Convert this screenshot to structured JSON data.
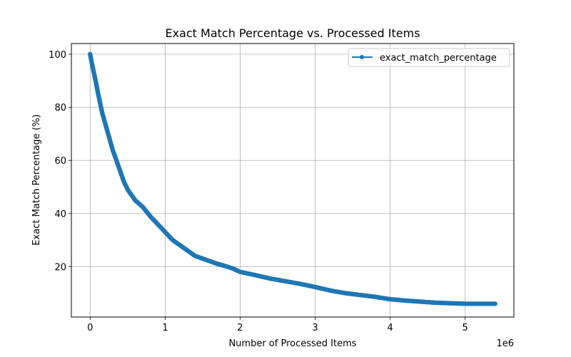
{
  "chart_data": {
    "type": "line",
    "title": "Exact Match Percentage vs. Processed Items",
    "xlabel": "Number of Processed Items",
    "ylabel": "Exact Match Percentage (%)",
    "x_offset_label": "1e6",
    "xlim": [
      -0.25,
      5.65
    ],
    "ylim": [
      1,
      104
    ],
    "x_ticks": [
      0,
      1,
      2,
      3,
      4,
      5
    ],
    "x_tick_labels": [
      "0",
      "1",
      "2",
      "3",
      "4",
      "5"
    ],
    "y_ticks": [
      20,
      40,
      60,
      80,
      100
    ],
    "y_tick_labels": [
      "20",
      "40",
      "60",
      "80",
      "100"
    ],
    "grid": true,
    "legend_position": "top-right",
    "series": [
      {
        "name": "exact_match_percentage",
        "color": "#1f77b4",
        "marker": "circle",
        "x": [
          0.0,
          0.02,
          0.05,
          0.08,
          0.1,
          0.13,
          0.16,
          0.2,
          0.25,
          0.3,
          0.35,
          0.4,
          0.45,
          0.5,
          0.55,
          0.6,
          0.7,
          0.8,
          0.9,
          1.0,
          1.1,
          1.2,
          1.3,
          1.4,
          1.5,
          1.6,
          1.7,
          1.8,
          1.9,
          2.0,
          2.2,
          2.4,
          2.6,
          2.8,
          3.0,
          3.2,
          3.4,
          3.6,
          3.8,
          4.0,
          4.2,
          4.4,
          4.6,
          4.8,
          5.0,
          5.2,
          5.4
        ],
        "y": [
          100,
          97,
          93,
          89,
          86,
          82,
          78,
          74,
          69,
          64,
          60,
          56,
          52,
          49,
          47,
          45,
          42.5,
          39,
          36,
          33,
          30,
          28,
          26,
          24,
          23,
          22,
          21,
          20.2,
          19.3,
          18,
          16.8,
          15.5,
          14.5,
          13.5,
          12.3,
          11,
          10,
          9.3,
          8.6,
          7.7,
          7.2,
          6.8,
          6.4,
          6.2,
          6.0,
          6.0,
          6.0
        ]
      }
    ]
  }
}
